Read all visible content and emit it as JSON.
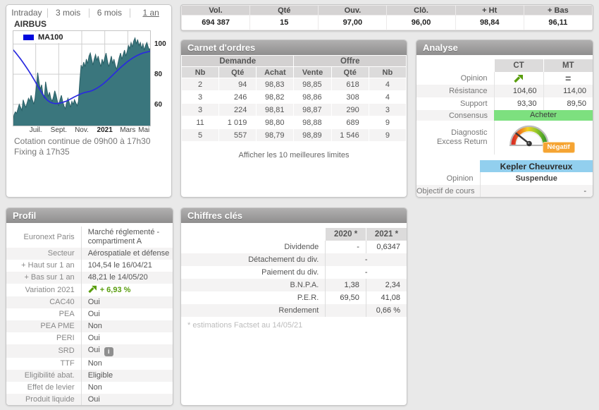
{
  "tabs": {
    "items": [
      {
        "label": "Intraday",
        "active": false
      },
      {
        "label": "3 mois",
        "active": false
      },
      {
        "label": "6 mois",
        "active": false
      },
      {
        "label": "1 an",
        "active": true
      }
    ]
  },
  "instrument": "AIRBUS",
  "chart_data": {
    "type": "area",
    "title": "AIRBUS - 1 an",
    "legend": "MA100",
    "legend_color": "#0009dd",
    "area_color": "#3a767d",
    "line_color": "#2a2adf",
    "y_ticks": [
      100,
      80,
      60
    ],
    "x_labels": [
      "Juil.",
      "Sept.",
      "Nov.",
      "2021",
      "Mars",
      "Mai"
    ],
    "price_range": [
      45.4,
      109.1
    ],
    "series": [
      {
        "name": "Cours",
        "type": "area",
        "values": [
          48,
          53,
          55,
          54,
          57,
          60,
          58,
          56,
          63,
          60,
          58,
          61,
          64,
          62,
          66,
          63,
          60,
          64,
          72,
          81,
          75,
          70,
          73,
          67,
          64,
          75,
          70,
          65,
          68,
          64,
          62,
          65,
          69,
          66,
          62,
          59,
          63,
          66,
          62,
          59,
          57,
          61,
          64,
          61,
          58,
          62,
          60,
          63,
          61,
          59,
          62,
          75,
          86,
          84,
          88,
          85,
          90,
          87,
          92,
          94,
          90,
          86,
          90,
          93,
          89,
          92,
          88,
          85,
          90,
          87,
          91,
          94,
          89,
          85,
          88,
          92,
          87,
          90,
          86,
          83,
          87,
          91,
          94,
          90,
          93,
          96,
          92,
          95,
          99,
          97,
          101,
          98,
          102,
          104,
          100,
          103,
          99,
          101,
          97,
          100,
          96,
          99,
          101,
          98,
          96,
          98
        ]
      },
      {
        "name": "MA100",
        "type": "line",
        "values": [
          96.5,
          94.5,
          92.3,
          90,
          87.5,
          85,
          82.3,
          79.5,
          76.5,
          73.5,
          70.5,
          67.5,
          64.8,
          62.8,
          61.5,
          60.8,
          60.5,
          60.6,
          60.9,
          61.4,
          62,
          62.8,
          63.7,
          64.7,
          65.6,
          66.4,
          67.2,
          67.8,
          68.2,
          68.6,
          69.2,
          70,
          71,
          72.2,
          73.5,
          75,
          76.6,
          78.3,
          80,
          81.7,
          83.4,
          85,
          86.5,
          88,
          89.3,
          90.5,
          91.6,
          92.5,
          93.3,
          94,
          94.5,
          94.9,
          95.2
        ]
      }
    ]
  },
  "notes": {
    "line1": "Cotation continue de 09h00 à 17h30",
    "line2": "Fixing à 17h35"
  },
  "quote_strip": {
    "headers": [
      "Vol.",
      "Qté",
      "Ouv.",
      "Clô.",
      "+ Ht",
      "+ Bas"
    ],
    "values": [
      "694 387",
      "15",
      "97,00",
      "96,00",
      "98,84",
      "96,11"
    ]
  },
  "order_book": {
    "title": "Carnet d'ordres",
    "group_headers": [
      "Demande",
      "Offre"
    ],
    "columns": [
      "Nb",
      "Qté",
      "Achat",
      "Vente",
      "Qté",
      "Nb"
    ],
    "rows": [
      [
        "2",
        "94",
        "98,83",
        "98,85",
        "618",
        "4"
      ],
      [
        "3",
        "246",
        "98,82",
        "98,86",
        "308",
        "4"
      ],
      [
        "3",
        "224",
        "98,81",
        "98,87",
        "290",
        "3"
      ],
      [
        "11",
        "1 019",
        "98,80",
        "98,88",
        "689",
        "9"
      ],
      [
        "5",
        "557",
        "98,79",
        "98,89",
        "1 546",
        "9"
      ]
    ],
    "footer_link": "Afficher les 10 meilleures limites"
  },
  "analyse": {
    "title": "Analyse",
    "columns": [
      "CT",
      "MT"
    ],
    "rows": [
      {
        "label": "Opinion",
        "ct": "up-arrow",
        "mt": "="
      },
      {
        "label": "Résistance",
        "ct": "104,60",
        "mt": "114,00"
      },
      {
        "label": "Support",
        "ct": "93,30",
        "mt": "89,50"
      }
    ],
    "consensus_label": "Consensus",
    "consensus_value": "Acheter",
    "consensus_color": "#7de07f",
    "diagnostic_label_1": "Diagnostic",
    "diagnostic_label_2": "Excess Return",
    "diagnostic_badge": "Négatif",
    "badge_color": "#f5a433",
    "broker": "Kepler Cheuvreux",
    "broker_bg": "#92cfee",
    "broker_opinion_label": "Opinion",
    "broker_opinion_value": "Suspendue",
    "broker_target_label": "Objectif de cours",
    "broker_target_value": "-"
  },
  "profil": {
    "title": "Profil",
    "rows": [
      {
        "label": "Euronext Paris",
        "value": "Marché réglementé - compartiment A"
      },
      {
        "label": "Secteur",
        "value": "Aérospatiale et défense"
      },
      {
        "label": "+ Haut sur 1 an",
        "value": "104,54 le 16/04/21"
      },
      {
        "label": "+ Bas sur 1 an",
        "value": "48,21 le 14/05/20"
      },
      {
        "label": "Variation 2021",
        "value": "+ 6,93 %",
        "type": "variation"
      },
      {
        "label": "CAC40",
        "value": "Oui"
      },
      {
        "label": "PEA",
        "value": "Oui"
      },
      {
        "label": "PEA PME",
        "value": "Non"
      },
      {
        "label": "PERI",
        "value": "Oui"
      },
      {
        "label": "SRD",
        "value": "Oui",
        "info": true
      },
      {
        "label": "TTF",
        "value": "Non"
      },
      {
        "label": "Eligibilité abat.",
        "value": "Eligible"
      },
      {
        "label": "Effet de levier",
        "value": "Non"
      },
      {
        "label": "Produit liquide",
        "value": "Oui"
      }
    ]
  },
  "chiffres": {
    "title": "Chiffres clés",
    "columns": [
      "2020 *",
      "2021 *"
    ],
    "rows": [
      {
        "label": "Dividende",
        "v2020": "-",
        "v2021": "0,6347"
      },
      {
        "label": "Détachement du div.",
        "span": "-"
      },
      {
        "label": "Paiement du div.",
        "span": "-"
      },
      {
        "label": "B.N.P.A.",
        "v2020": "1,38",
        "v2021": "2,34"
      },
      {
        "label": "P.E.R.",
        "v2020": "69,50",
        "v2021": "41,08"
      },
      {
        "label": "Rendement",
        "v2020": "",
        "v2021": "0,66 %"
      }
    ],
    "footnote": "* estimations Factset au 14/05/21"
  }
}
